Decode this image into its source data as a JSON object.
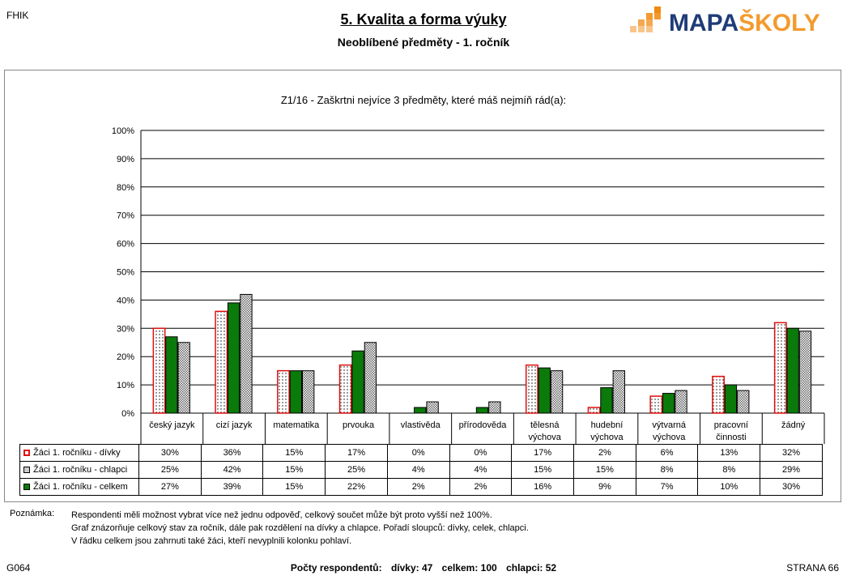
{
  "header": {
    "corner_code": "FHIK",
    "title": "5. Kvalita a forma výuky",
    "subtitle": "Neoblíbené předměty -  1. ročník",
    "logo_text": "MAPAŠKOLY"
  },
  "chart_data": {
    "type": "bar",
    "title": "Z1/16 - Zaškrtni nejvíce 3 předměty, které máš nejmíň rád(a):",
    "categories": [
      [
        "český jazyk"
      ],
      [
        "cizí jazyk"
      ],
      [
        "matematika"
      ],
      [
        "prvouka"
      ],
      [
        "vlastivěda"
      ],
      [
        "přírodověda"
      ],
      [
        "tělesná",
        "výchova"
      ],
      [
        "hudební",
        "výchova"
      ],
      [
        "výtvarná",
        "výchova"
      ],
      [
        "pracovní",
        "činnosti"
      ],
      [
        "žádný"
      ]
    ],
    "series": [
      {
        "name": "Žáci 1. ročníku - dívky",
        "values": [
          30,
          36,
          15,
          17,
          0,
          0,
          17,
          2,
          6,
          13,
          32
        ],
        "color": "#ffffff",
        "stroke": "#e01010"
      },
      {
        "name": "Žáci 1. ročníku - celkem",
        "values": [
          27,
          39,
          15,
          22,
          2,
          2,
          16,
          9,
          7,
          10,
          30
        ],
        "color": "#0a7a0a",
        "stroke": "#000000"
      },
      {
        "name": "Žáci 1. ročníku - chlapci",
        "values": [
          25,
          42,
          15,
          25,
          4,
          4,
          15,
          15,
          8,
          8,
          29
        ],
        "color": "#cccccc",
        "stroke": "#000000"
      }
    ],
    "ylim": [
      0,
      100
    ],
    "yticks": [
      "0%",
      "10%",
      "20%",
      "30%",
      "40%",
      "50%",
      "60%",
      "70%",
      "80%",
      "90%",
      "100%"
    ],
    "grid": true
  },
  "table": {
    "rows": [
      {
        "label": "Žáci 1. ročníku - dívky",
        "key": "k-girls",
        "values": [
          "30%",
          "36%",
          "15%",
          "17%",
          "0%",
          "0%",
          "17%",
          "2%",
          "6%",
          "13%",
          "32%"
        ]
      },
      {
        "label": "Žáci 1. ročníku - chlapci",
        "key": "k-boys",
        "values": [
          "25%",
          "42%",
          "15%",
          "25%",
          "4%",
          "4%",
          "15%",
          "15%",
          "8%",
          "8%",
          "29%"
        ]
      },
      {
        "label": "Žáci 1. ročníku - celkem",
        "key": "k-all",
        "values": [
          "27%",
          "39%",
          "15%",
          "22%",
          "2%",
          "2%",
          "16%",
          "9%",
          "7%",
          "10%",
          "30%"
        ]
      }
    ]
  },
  "note": {
    "label": "Poznámka:",
    "lines": [
      "Respondenti měli možnost vybrat více než jednu odpověď, celkový součet může být proto vyšší než 100%.",
      "Graf znázorňuje celkový stav za ročník, dále pak rozdělení na dívky a chlapce. Pořadí sloupců: dívky, celek, chlapci.",
      "V řádku celkem jsou zahrnuti také žáci, kteří nevyplnili kolonku pohlaví."
    ]
  },
  "footer": {
    "left": "G064",
    "respondents_label": "Počty respondentů:",
    "girls": "dívky: 47",
    "total": "celkem: 100",
    "boys": "chlapci: 52",
    "page": "STRANA 66"
  }
}
